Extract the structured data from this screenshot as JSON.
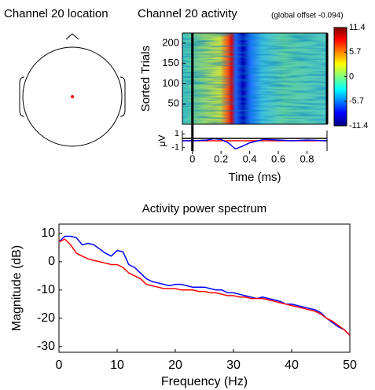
{
  "chart_data": [
    {
      "type": "head",
      "title": "Channel 20 location"
    },
    {
      "type": "erpimage",
      "title": "Channel 20 activity",
      "subtitle": "(global offset -0.094)",
      "ylabel": "Sorted Trials",
      "xlabel": "Time (ms)",
      "ylim": [
        0,
        225
      ],
      "yticks": [
        50,
        100,
        150,
        200
      ],
      "xlim": [
        -0.07,
        0.94
      ],
      "xticks": [
        0,
        0.2,
        0.4,
        0.6,
        0.8
      ],
      "clim": [
        -11.4,
        11.4
      ],
      "cticks": [
        11.4,
        5.7,
        0,
        -5.7,
        -11.4
      ],
      "erp": {
        "ylabel": "μV",
        "ylim": [
          -1.5,
          1.5
        ],
        "yticks": [
          -1,
          1
        ],
        "color": "#0000ff",
        "x": [
          -0.07,
          0,
          0.1,
          0.15,
          0.2,
          0.25,
          0.3,
          0.35,
          0.4,
          0.5,
          0.6,
          0.7,
          0.8,
          0.94
        ],
        "values": [
          0,
          0,
          0.1,
          0.3,
          0.2,
          -0.3,
          -1.2,
          -0.8,
          -0.3,
          0.2,
          0.1,
          0,
          0.1,
          0
        ]
      }
    },
    {
      "type": "line",
      "title": "Activity power spectrum",
      "xlabel": "Frequency (Hz)",
      "ylabel": "Magnitude (dB)",
      "xlim": [
        0,
        50
      ],
      "xticks": [
        0,
        10,
        20,
        30,
        40,
        50
      ],
      "ylim": [
        -32,
        13.3
      ],
      "yticks": [
        -30,
        -20,
        -10,
        0,
        10
      ],
      "x": [
        0,
        1,
        2,
        3,
        4,
        5,
        6,
        7,
        8,
        9,
        10,
        11,
        12,
        13,
        14,
        15,
        16,
        17,
        18,
        19,
        20,
        21,
        22,
        23,
        24,
        25,
        26,
        27,
        28,
        29,
        30,
        31,
        32,
        33,
        34,
        35,
        36,
        37,
        38,
        39,
        40,
        41,
        42,
        43,
        44,
        45,
        46,
        47,
        48,
        49,
        50
      ],
      "series": [
        {
          "color": "#0000ff",
          "values": [
            7,
            9,
            9,
            8.5,
            6,
            6.5,
            6,
            4.5,
            3,
            2,
            4,
            3.5,
            -1,
            -2,
            -4,
            -6,
            -7,
            -7.5,
            -8,
            -8.5,
            -8,
            -8,
            -8.5,
            -9,
            -9,
            -9,
            -9.5,
            -10,
            -10,
            -11,
            -11,
            -11.5,
            -12,
            -12.5,
            -13,
            -12.5,
            -13,
            -13.5,
            -14,
            -15,
            -15,
            -15.5,
            -16,
            -16.5,
            -17,
            -18,
            -20,
            -21.5,
            -23,
            -24,
            -26
          ]
        },
        {
          "color": "#ff0000",
          "values": [
            7,
            8,
            6,
            3,
            2,
            1,
            0.5,
            0,
            -0.5,
            -1,
            -1,
            -2,
            -4,
            -5,
            -6,
            -8,
            -8.5,
            -9,
            -9.5,
            -9.5,
            -9.5,
            -10,
            -10,
            -10,
            -10.5,
            -10.5,
            -11,
            -11,
            -11.5,
            -12,
            -12,
            -12.5,
            -12.5,
            -13,
            -13,
            -13,
            -13.5,
            -14,
            -14.5,
            -15,
            -15.5,
            -16,
            -16.5,
            -17,
            -17.5,
            -18.5,
            -20,
            -21,
            -22.5,
            -24,
            -26
          ]
        }
      ]
    }
  ]
}
